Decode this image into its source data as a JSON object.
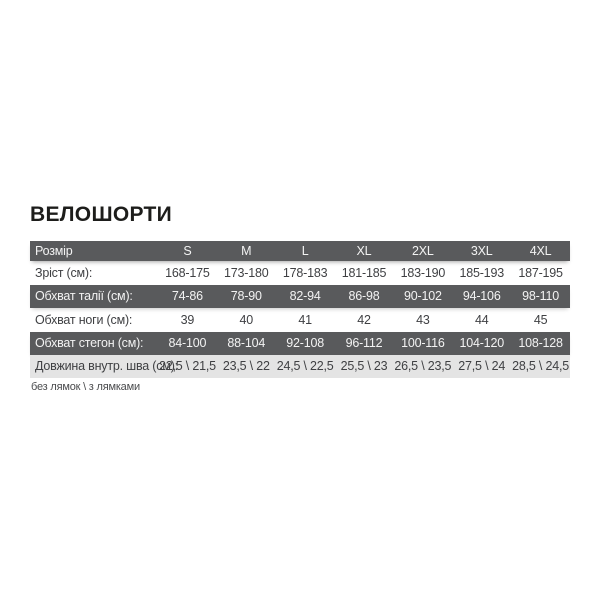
{
  "title": "ВЕЛОШОРТИ",
  "colors": {
    "dark_row_bg": "#595a5c",
    "dark_row_text": "#f3f3f3",
    "light_row_bg": "#e4e4e4",
    "body_text": "#3f4043",
    "title_text": "#1d1d1b",
    "page_bg": "#ffffff"
  },
  "table": {
    "columns": [
      "Розмір",
      "S",
      "M",
      "L",
      "XL",
      "2XL",
      "3XL",
      "4XL"
    ],
    "rows": [
      {
        "label": "Зріст (см):",
        "values": [
          "168-175",
          "173-180",
          "178-183",
          "181-185",
          "183-190",
          "185-193",
          "187-195"
        ]
      },
      {
        "label": "Обхват талії (см):",
        "values": [
          "74-86",
          "78-90",
          "82-94",
          "86-98",
          "90-102",
          "94-106",
          "98-110"
        ]
      },
      {
        "label": "Обхват ноги (см):",
        "values": [
          "39",
          "40",
          "41",
          "42",
          "43",
          "44",
          "45"
        ]
      },
      {
        "label": "Обхват стегон (см):",
        "values": [
          "84-100",
          "88-104",
          "92-108",
          "96-112",
          "100-116",
          "104-120",
          "108-128"
        ]
      },
      {
        "label": "Довжина внутр. шва (см):",
        "values": [
          "22,5 \\ 21,5",
          "23,5 \\ 22",
          "24,5 \\ 22,5",
          "25,5 \\ 23",
          "26,5 \\ 23,5",
          "27,5 \\ 24",
          "28,5 \\ 24,5"
        ]
      }
    ],
    "footnote": "без лямок \\ з лямками"
  }
}
